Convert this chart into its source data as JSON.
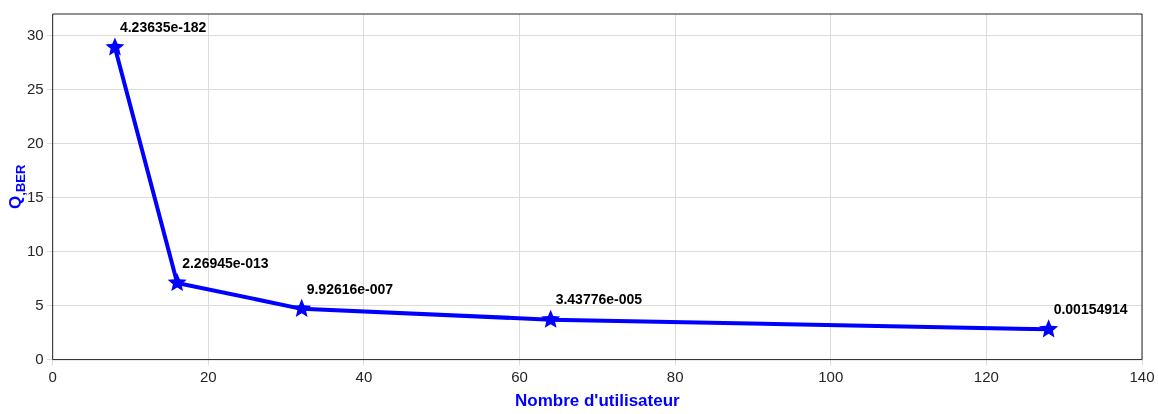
{
  "chart_data": {
    "type": "line",
    "xlabel": "Nombre d'utilisateur",
    "ylabel": "Q$_{,BER}$",
    "x": [
      8,
      16,
      32,
      64,
      128
    ],
    "series": [
      {
        "color": "#0000ff",
        "values": [
          28.9,
          7.1,
          4.7,
          3.7,
          2.8
        ]
      }
    ],
    "xlim": [
      0,
      140
    ],
    "xticks": [
      0,
      20,
      40,
      60,
      80,
      100,
      120,
      140
    ],
    "ylim": [
      0,
      32
    ],
    "yticks": [
      0,
      5,
      10,
      15,
      20,
      25,
      30
    ],
    "grid": true,
    "marker": "star",
    "line_style": "solid",
    "annotations": [
      {
        "text": "4.23635e-182",
        "x": 8,
        "y": 28.9
      },
      {
        "text": "2.26945e-013",
        "x": 16,
        "y": 7.1
      },
      {
        "text": "9.92616e-007",
        "x": 32,
        "y": 4.7
      },
      {
        "text": "3.43776e-005",
        "x": 64,
        "y": 3.7
      },
      {
        "text": "0.00154914",
        "x": 128,
        "y": 2.8
      }
    ]
  }
}
